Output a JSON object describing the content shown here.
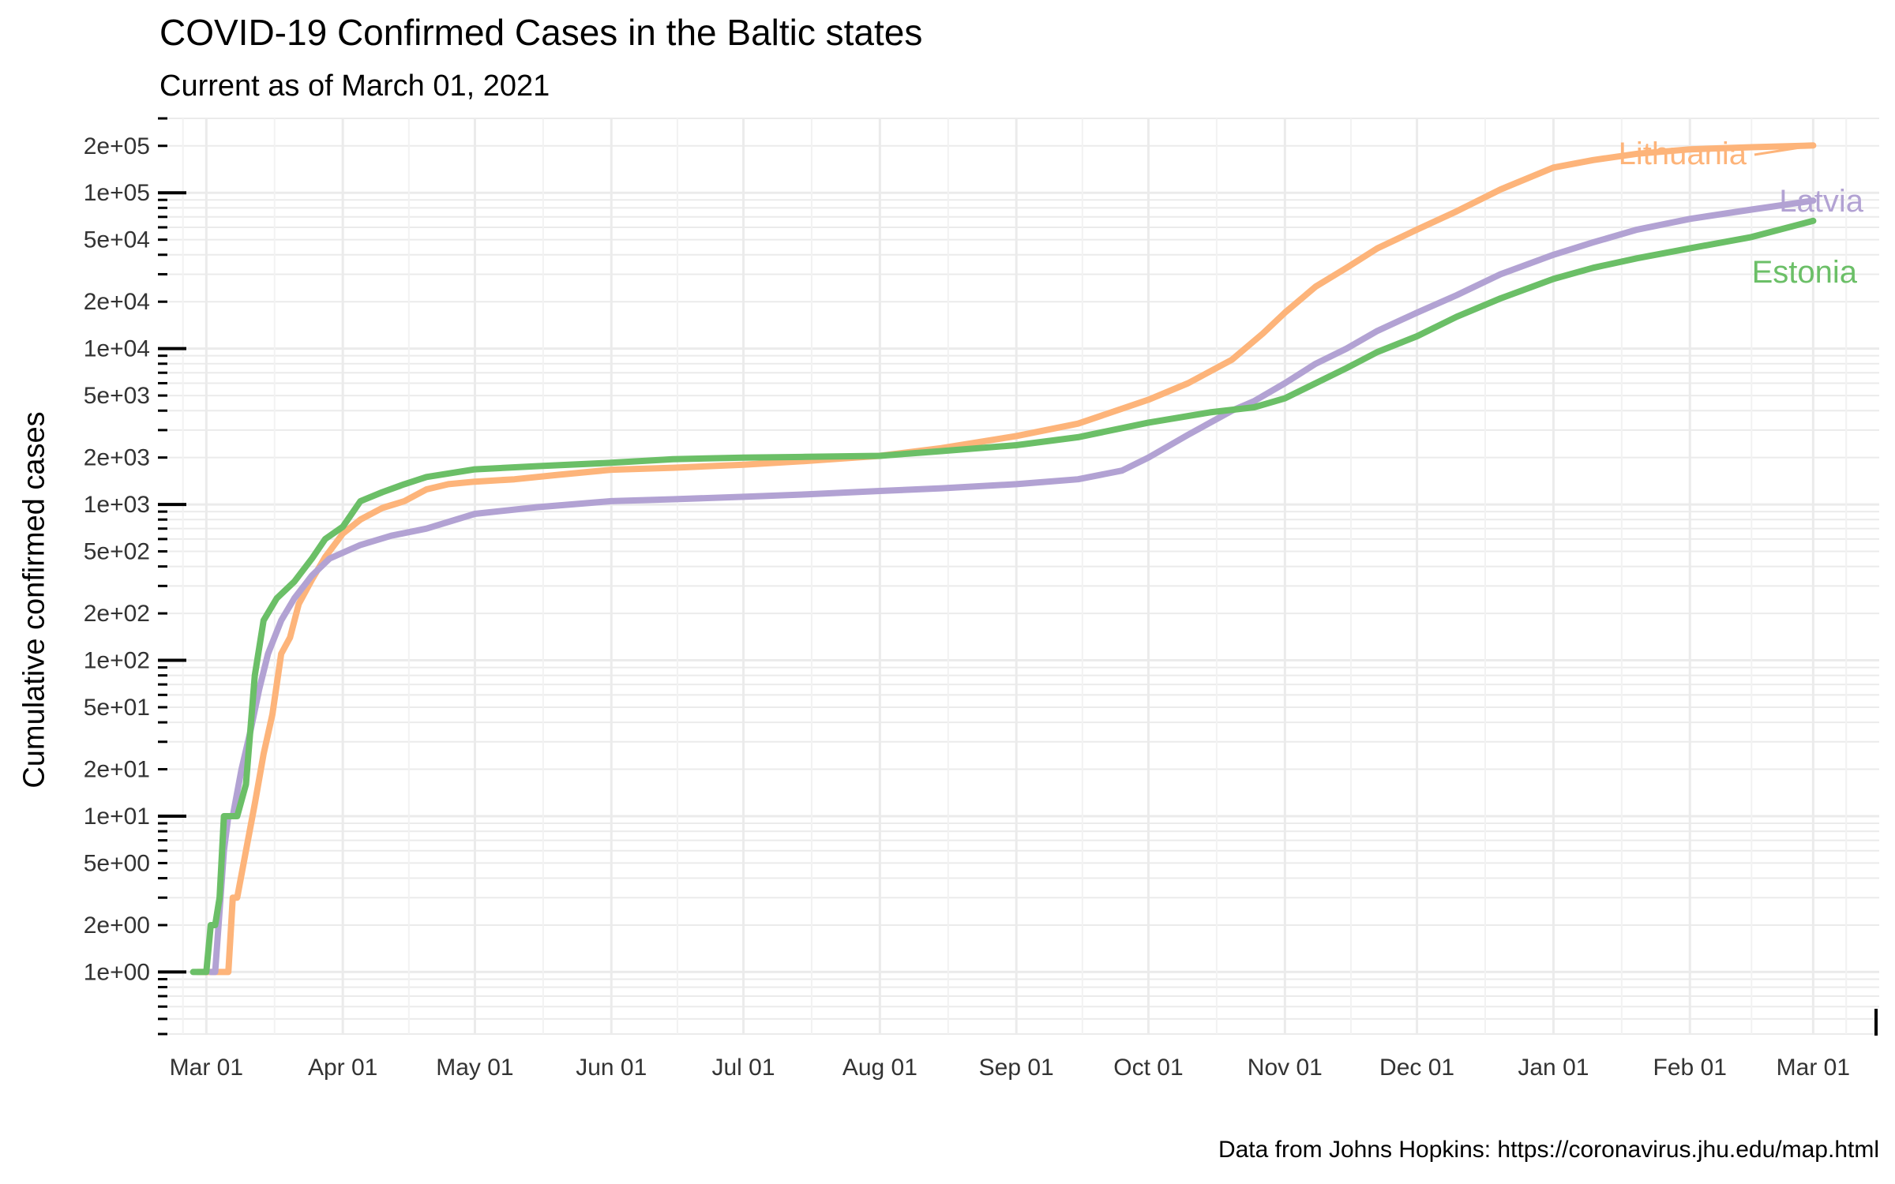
{
  "chart_data": {
    "type": "line",
    "title": "COVID-19 Confirmed Cases in the Baltic states",
    "subtitle": "Current as of March 01, 2021",
    "xlabel": "",
    "ylabel": "Cumulative confirmed cases",
    "caption": "Data from Johns Hopkins: https://coronavirus.jhu.edu/map.html",
    "y_scale": "log10",
    "ylim": [
      0.4,
      300000
    ],
    "xlim": [
      "2020-02-19",
      "2021-03-16"
    ],
    "grid": true,
    "legend": "none (direct labels at line ends)",
    "x_ticks": [
      {
        "date": "2020-03-01",
        "label": "Mar 01"
      },
      {
        "date": "2020-04-01",
        "label": "Apr 01"
      },
      {
        "date": "2020-05-01",
        "label": "May 01"
      },
      {
        "date": "2020-06-01",
        "label": "Jun 01"
      },
      {
        "date": "2020-07-01",
        "label": "Jul 01"
      },
      {
        "date": "2020-08-01",
        "label": "Aug 01"
      },
      {
        "date": "2020-09-01",
        "label": "Sep 01"
      },
      {
        "date": "2020-10-01",
        "label": "Oct 01"
      },
      {
        "date": "2020-11-01",
        "label": "Nov 01"
      },
      {
        "date": "2020-12-01",
        "label": "Dec 01"
      },
      {
        "date": "2021-01-01",
        "label": "Jan 01"
      },
      {
        "date": "2021-02-01",
        "label": "Feb 01"
      },
      {
        "date": "2021-03-01",
        "label": "Mar 01"
      }
    ],
    "y_ticks": [
      {
        "value": 1,
        "label": "1e+00"
      },
      {
        "value": 2,
        "label": "2e+00"
      },
      {
        "value": 5,
        "label": "5e+00"
      },
      {
        "value": 10,
        "label": "1e+01"
      },
      {
        "value": 20,
        "label": "2e+01"
      },
      {
        "value": 50,
        "label": "5e+01"
      },
      {
        "value": 100,
        "label": "1e+02"
      },
      {
        "value": 200,
        "label": "2e+02"
      },
      {
        "value": 500,
        "label": "5e+02"
      },
      {
        "value": 1000,
        "label": "1e+03"
      },
      {
        "value": 2000,
        "label": "2e+03"
      },
      {
        "value": 5000,
        "label": "5e+03"
      },
      {
        "value": 10000,
        "label": "1e+04"
      },
      {
        "value": 20000,
        "label": "2e+04"
      },
      {
        "value": 50000,
        "label": "5e+04"
      },
      {
        "value": 100000,
        "label": "1e+05"
      },
      {
        "value": 200000,
        "label": "2e+05"
      }
    ],
    "series": [
      {
        "name": "Lithuania",
        "color": "#FDB47A",
        "points": [
          [
            "2020-02-28",
            1
          ],
          [
            "2020-03-06",
            1
          ],
          [
            "2020-03-07",
            3
          ],
          [
            "2020-03-08",
            3
          ],
          [
            "2020-03-10",
            6
          ],
          [
            "2020-03-12",
            12
          ],
          [
            "2020-03-14",
            25
          ],
          [
            "2020-03-16",
            45
          ],
          [
            "2020-03-18",
            110
          ],
          [
            "2020-03-20",
            140
          ],
          [
            "2020-03-22",
            230
          ],
          [
            "2020-03-25",
            330
          ],
          [
            "2020-03-28",
            460
          ],
          [
            "2020-04-01",
            650
          ],
          [
            "2020-04-05",
            800
          ],
          [
            "2020-04-10",
            950
          ],
          [
            "2020-04-15",
            1050
          ],
          [
            "2020-04-20",
            1250
          ],
          [
            "2020-04-25",
            1350
          ],
          [
            "2020-05-01",
            1400
          ],
          [
            "2020-05-10",
            1450
          ],
          [
            "2020-05-20",
            1550
          ],
          [
            "2020-06-01",
            1670
          ],
          [
            "2020-06-15",
            1720
          ],
          [
            "2020-07-01",
            1800
          ],
          [
            "2020-07-15",
            1900
          ],
          [
            "2020-08-01",
            2050
          ],
          [
            "2020-08-15",
            2300
          ],
          [
            "2020-09-01",
            2750
          ],
          [
            "2020-09-15",
            3300
          ],
          [
            "2020-10-01",
            4700
          ],
          [
            "2020-10-10",
            6000
          ],
          [
            "2020-10-20",
            8500
          ],
          [
            "2020-10-27",
            12500
          ],
          [
            "2020-11-01",
            17000
          ],
          [
            "2020-11-08",
            25000
          ],
          [
            "2020-11-15",
            33000
          ],
          [
            "2020-11-22",
            44000
          ],
          [
            "2020-12-01",
            58000
          ],
          [
            "2020-12-10",
            76000
          ],
          [
            "2020-12-20",
            105000
          ],
          [
            "2021-01-01",
            145000
          ],
          [
            "2021-01-10",
            162000
          ],
          [
            "2021-01-20",
            178000
          ],
          [
            "2021-02-01",
            190000
          ],
          [
            "2021-02-15",
            196000
          ],
          [
            "2021-03-01",
            201000
          ]
        ]
      },
      {
        "name": "Latvia",
        "color": "#B2A2D3",
        "points": [
          [
            "2020-03-02",
            1
          ],
          [
            "2020-03-03",
            1
          ],
          [
            "2020-03-05",
            6
          ],
          [
            "2020-03-06",
            10
          ],
          [
            "2020-03-07",
            10
          ],
          [
            "2020-03-09",
            20
          ],
          [
            "2020-03-11",
            35
          ],
          [
            "2020-03-13",
            65
          ],
          [
            "2020-03-15",
            110
          ],
          [
            "2020-03-18",
            180
          ],
          [
            "2020-03-21",
            250
          ],
          [
            "2020-03-25",
            350
          ],
          [
            "2020-03-29",
            450
          ],
          [
            "2020-04-05",
            550
          ],
          [
            "2020-04-12",
            630
          ],
          [
            "2020-04-20",
            700
          ],
          [
            "2020-05-01",
            870
          ],
          [
            "2020-05-15",
            960
          ],
          [
            "2020-06-01",
            1050
          ],
          [
            "2020-06-15",
            1080
          ],
          [
            "2020-07-01",
            1120
          ],
          [
            "2020-07-15",
            1160
          ],
          [
            "2020-08-01",
            1220
          ],
          [
            "2020-08-15",
            1270
          ],
          [
            "2020-09-01",
            1350
          ],
          [
            "2020-09-15",
            1450
          ],
          [
            "2020-09-25",
            1650
          ],
          [
            "2020-10-01",
            2000
          ],
          [
            "2020-10-10",
            2800
          ],
          [
            "2020-10-20",
            4000
          ],
          [
            "2020-10-25",
            4600
          ],
          [
            "2020-11-01",
            6000
          ],
          [
            "2020-11-08",
            8000
          ],
          [
            "2020-11-15",
            10000
          ],
          [
            "2020-11-22",
            13000
          ],
          [
            "2020-12-01",
            17000
          ],
          [
            "2020-12-10",
            22000
          ],
          [
            "2020-12-20",
            30000
          ],
          [
            "2021-01-01",
            40000
          ],
          [
            "2021-01-10",
            48000
          ],
          [
            "2021-01-20",
            58000
          ],
          [
            "2021-02-01",
            68000
          ],
          [
            "2021-02-15",
            78000
          ],
          [
            "2021-03-01",
            89000
          ]
        ]
      },
      {
        "name": "Estonia",
        "color": "#6BBF67",
        "points": [
          [
            "2020-02-27",
            1
          ],
          [
            "2020-03-01",
            1
          ],
          [
            "2020-03-02",
            2
          ],
          [
            "2020-03-03",
            2
          ],
          [
            "2020-03-04",
            3
          ],
          [
            "2020-03-05",
            10
          ],
          [
            "2020-03-06",
            10
          ],
          [
            "2020-03-08",
            10
          ],
          [
            "2020-03-10",
            16
          ],
          [
            "2020-03-12",
            80
          ],
          [
            "2020-03-14",
            180
          ],
          [
            "2020-03-17",
            250
          ],
          [
            "2020-03-21",
            320
          ],
          [
            "2020-03-25",
            450
          ],
          [
            "2020-03-28",
            600
          ],
          [
            "2020-04-01",
            720
          ],
          [
            "2020-04-05",
            1050
          ],
          [
            "2020-04-10",
            1200
          ],
          [
            "2020-04-15",
            1350
          ],
          [
            "2020-04-20",
            1500
          ],
          [
            "2020-05-01",
            1680
          ],
          [
            "2020-05-15",
            1760
          ],
          [
            "2020-06-01",
            1850
          ],
          [
            "2020-06-15",
            1950
          ],
          [
            "2020-07-01",
            2000
          ],
          [
            "2020-07-15",
            2020
          ],
          [
            "2020-08-01",
            2050
          ],
          [
            "2020-08-15",
            2200
          ],
          [
            "2020-09-01",
            2400
          ],
          [
            "2020-09-15",
            2700
          ],
          [
            "2020-10-01",
            3350
          ],
          [
            "2020-10-15",
            3900
          ],
          [
            "2020-10-25",
            4200
          ],
          [
            "2020-11-01",
            4800
          ],
          [
            "2020-11-08",
            6000
          ],
          [
            "2020-11-15",
            7500
          ],
          [
            "2020-11-22",
            9500
          ],
          [
            "2020-12-01",
            12000
          ],
          [
            "2020-12-10",
            16000
          ],
          [
            "2020-12-20",
            21000
          ],
          [
            "2021-01-01",
            28000
          ],
          [
            "2021-01-10",
            33000
          ],
          [
            "2021-01-20",
            38000
          ],
          [
            "2021-02-01",
            44000
          ],
          [
            "2021-02-15",
            52000
          ],
          [
            "2021-03-01",
            66000
          ]
        ]
      }
    ]
  }
}
